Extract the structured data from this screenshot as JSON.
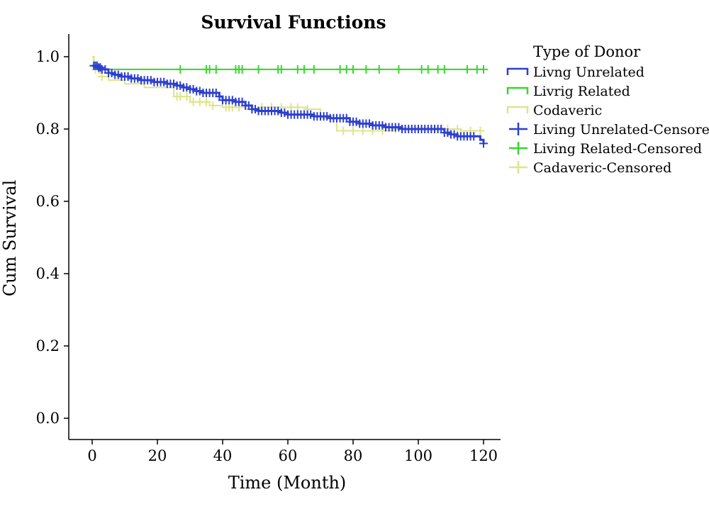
{
  "chart_data": {
    "type": "line",
    "title": "Survival Functions",
    "xlabel": "Time (Month)",
    "ylabel": "Cum Survival",
    "xlim": [
      -6,
      125
    ],
    "ylim": [
      -0.06,
      1.06
    ],
    "x_ticks": [
      0,
      20,
      40,
      60,
      80,
      100,
      120
    ],
    "x_tick_labels": [
      "0",
      "20",
      "40",
      "60",
      "80",
      "100",
      "120"
    ],
    "y_ticks": [
      0.0,
      0.2,
      0.4,
      0.6,
      0.8,
      1.0
    ],
    "y_tick_labels": [
      "0.0",
      "0.2",
      "0.4",
      "0.6",
      "0.8",
      "1.0"
    ],
    "grid": false,
    "legend": {
      "title": "Type of Donor",
      "placement": "top-right outside",
      "entries": [
        {
          "label": "Livng Unrelated",
          "marker": "step",
          "color": "#2c3fd0"
        },
        {
          "label": "Livrig Related",
          "marker": "step",
          "color": "#39d62c"
        },
        {
          "label": "Codaveric",
          "marker": "step",
          "color": "#dfe48a"
        },
        {
          "label": "Living Unrelated-Censored",
          "marker": "plus",
          "color": "#2c3fd0"
        },
        {
          "label": "Living Related-Censored",
          "marker": "plus",
          "color": "#39d62c"
        },
        {
          "label": "Cadaveric-Censored",
          "marker": "plus",
          "color": "#dfe48a"
        }
      ]
    },
    "series": [
      {
        "color": "#39d62c",
        "line_width": 2,
        "steps": [
          [
            0,
            1.0
          ],
          [
            0.5,
            0.965
          ],
          [
            120,
            0.965
          ]
        ],
        "censored": [
          27,
          35,
          36,
          38,
          44,
          45,
          46,
          51,
          57,
          58,
          63,
          65,
          68,
          76,
          78,
          80,
          84,
          88,
          94,
          101,
          103,
          106,
          108,
          115,
          118,
          120
        ]
      },
      {
        "color": "#dfe48a",
        "line_width": 2,
        "steps": [
          [
            0,
            1.0
          ],
          [
            0.5,
            0.975
          ],
          [
            1,
            0.965
          ],
          [
            2,
            0.955
          ],
          [
            3,
            0.945
          ],
          [
            5,
            0.935
          ],
          [
            10,
            0.925
          ],
          [
            16,
            0.915
          ],
          [
            25,
            0.89
          ],
          [
            30,
            0.875
          ],
          [
            36,
            0.865
          ],
          [
            40,
            0.86
          ],
          [
            47,
            0.855
          ],
          [
            52,
            0.86
          ],
          [
            66,
            0.855
          ],
          [
            70,
            0.83
          ],
          [
            75,
            0.795
          ],
          [
            93,
            0.8
          ],
          [
            113,
            0.795
          ],
          [
            120,
            0.795
          ]
        ],
        "censored": [
          1,
          3,
          26,
          27,
          29,
          31,
          33,
          35,
          37,
          41,
          42,
          43,
          45,
          49,
          52,
          55,
          58,
          61,
          63,
          66,
          74,
          77,
          80,
          83,
          86,
          89,
          93,
          95,
          98,
          101,
          104,
          106,
          109,
          112,
          116,
          119
        ]
      },
      {
        "color": "#2c3fd0",
        "line_width": 3,
        "steps": [
          [
            0,
            0.975
          ],
          [
            2,
            0.97
          ],
          [
            3,
            0.965
          ],
          [
            5,
            0.955
          ],
          [
            7,
            0.95
          ],
          [
            9,
            0.945
          ],
          [
            12,
            0.94
          ],
          [
            15,
            0.935
          ],
          [
            19,
            0.93
          ],
          [
            23,
            0.925
          ],
          [
            26,
            0.92
          ],
          [
            28,
            0.915
          ],
          [
            30,
            0.91
          ],
          [
            32,
            0.905
          ],
          [
            34,
            0.9
          ],
          [
            39,
            0.89
          ],
          [
            40,
            0.88
          ],
          [
            44,
            0.875
          ],
          [
            47,
            0.865
          ],
          [
            49,
            0.855
          ],
          [
            51,
            0.85
          ],
          [
            58,
            0.845
          ],
          [
            60,
            0.84
          ],
          [
            68,
            0.835
          ],
          [
            73,
            0.83
          ],
          [
            79,
            0.82
          ],
          [
            82,
            0.815
          ],
          [
            86,
            0.81
          ],
          [
            90,
            0.805
          ],
          [
            95,
            0.8
          ],
          [
            108,
            0.79
          ],
          [
            110,
            0.785
          ],
          [
            112,
            0.78
          ],
          [
            119,
            0.77
          ],
          [
            120,
            0.76
          ]
        ],
        "censored": [
          0.5,
          1,
          1.5,
          2,
          2.5,
          3,
          4,
          5,
          6,
          7,
          8,
          9,
          10,
          11,
          12,
          13,
          14,
          15,
          16,
          17,
          18,
          19,
          20,
          21,
          22,
          23,
          24,
          25,
          26,
          27,
          28,
          29,
          30,
          31,
          32,
          33,
          34,
          35,
          36,
          37,
          38,
          39,
          40,
          41,
          42,
          43,
          44,
          45,
          46,
          47,
          48,
          49,
          50,
          51,
          52,
          53,
          54,
          55,
          56,
          57,
          58,
          59,
          60,
          61,
          62,
          63,
          64,
          65,
          66,
          67,
          68,
          69,
          70,
          71,
          72,
          73,
          74,
          75,
          76,
          77,
          78,
          79,
          80,
          81,
          82,
          83,
          84,
          85,
          86,
          87,
          88,
          89,
          90,
          91,
          92,
          93,
          94,
          95,
          96,
          97,
          98,
          99,
          100,
          101,
          102,
          103,
          104,
          105,
          106,
          107,
          108,
          109,
          110,
          111,
          112,
          113,
          114,
          115,
          116,
          117,
          120
        ]
      }
    ]
  }
}
